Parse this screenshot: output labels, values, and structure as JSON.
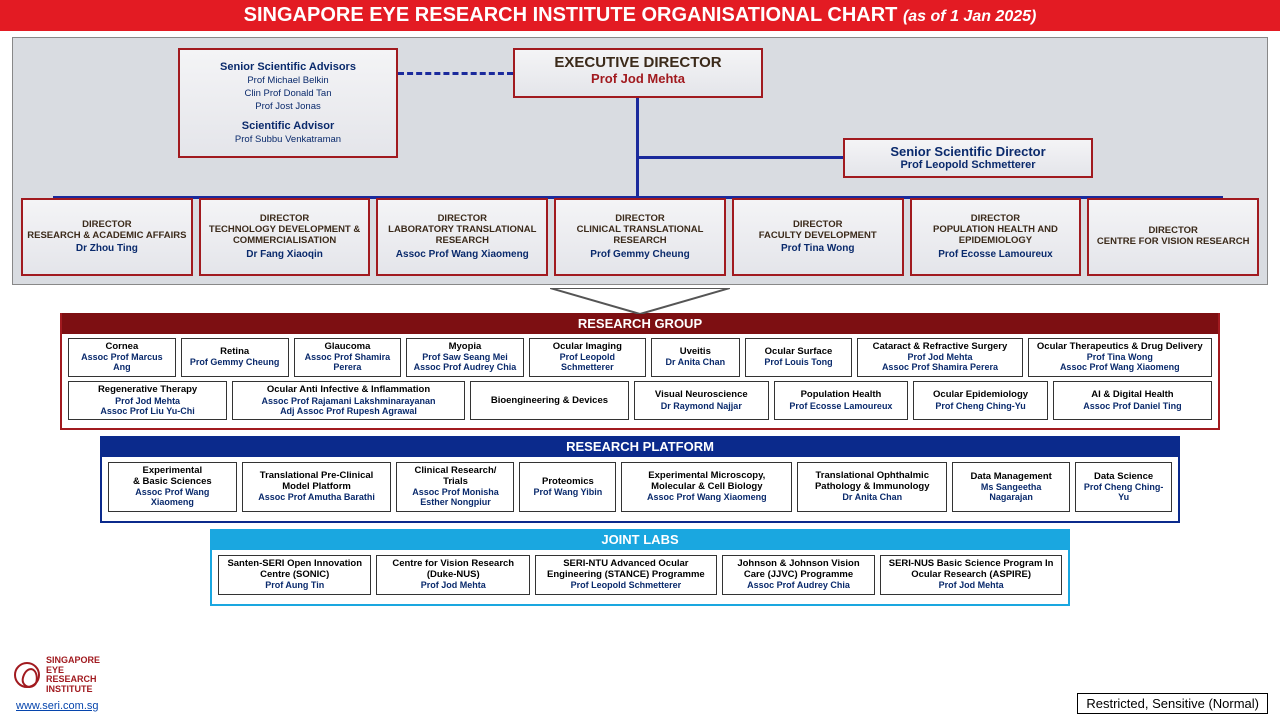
{
  "colors": {
    "title_bg": "#e31b23",
    "panel_bg": "#d9dce1",
    "box_border": "#a11a1f",
    "connector": "#1a2a9c",
    "rg_bar": "#7d0f12",
    "rp_bar": "#0b2a8c",
    "jl_bar": "#1aa7e0",
    "name_blue": "#0a2a6c"
  },
  "title": {
    "main": "SINGAPORE EYE RESEARCH INSTITUTE ORGANISATIONAL CHART",
    "sub": "(as of 1 Jan 2025)"
  },
  "advisors": {
    "header1": "Senior Scientific Advisors",
    "list1": [
      "Prof Michael Belkin",
      "Clin Prof Donald Tan",
      "Prof Jost Jonas"
    ],
    "header2": "Scientific Advisor",
    "list2": [
      "Prof Subbu Venkatraman"
    ]
  },
  "executive": {
    "role": "EXECUTIVE DIRECTOR",
    "name": "Prof Jod Mehta"
  },
  "ssd": {
    "role": "Senior Scientific Director",
    "name": "Prof Leopold Schmetterer"
  },
  "directors": [
    {
      "role": "DIRECTOR\nRESEARCH  & ACADEMIC AFFAIRS",
      "name": "Dr Zhou Ting"
    },
    {
      "role": "DIRECTOR\nTECHNOLOGY DEVELOPMENT & COMMERCIALISATION",
      "name": "Dr Fang Xiaoqin"
    },
    {
      "role": "DIRECTOR\nLABORATORY TRANSLATIONAL  RESEARCH",
      "name": "Assoc Prof Wang Xiaomeng"
    },
    {
      "role": "DIRECTOR\nCLINICAL TRANSLATIONAL RESEARCH",
      "name": "Prof Gemmy Cheung"
    },
    {
      "role": "DIRECTOR\nFACULTY DEVELOPMENT",
      "name": "Prof Tina Wong"
    },
    {
      "role": "DIRECTOR\nPOPULATION HEALTH AND EPIDEMIOLOGY",
      "name": "Prof Ecosse Lamoureux"
    },
    {
      "role": "DIRECTOR\nCENTRE FOR VISION RESEARCH",
      "name": ""
    }
  ],
  "research_group": {
    "title": "RESEARCH GROUP",
    "row1": [
      {
        "t": "Cornea",
        "p": "Assoc Prof Marcus Ang"
      },
      {
        "t": "Retina",
        "p": "Prof Gemmy Cheung"
      },
      {
        "t": "Glaucoma",
        "p": "Assoc Prof Shamira Perera"
      },
      {
        "t": "Myopia",
        "p": "Prof Saw  Seang Mei\nAssoc Prof Audrey Chia"
      },
      {
        "t": "Ocular Imaging",
        "p": "Prof Leopold Schmetterer"
      },
      {
        "t": "Uveitis",
        "p": "Dr Anita Chan"
      },
      {
        "t": "Ocular Surface",
        "p": "Prof Louis Tong"
      },
      {
        "t": "Cataract & Refractive Surgery",
        "p": "Prof Jod Mehta\nAssoc Prof Shamira  Perera"
      },
      {
        "t": "Ocular Therapeutics & Drug Delivery",
        "p": "Prof Tina  Wong\nAssoc Prof Wang Xiaomeng"
      }
    ],
    "row2": [
      {
        "t": "Regenerative Therapy",
        "p": "Prof Jod Mehta\nAssoc Prof Liu Yu-Chi"
      },
      {
        "t": "Ocular Anti Infective & Inflammation",
        "p": "Assoc Prof Rajamani  Lakshminarayanan\nAdj Assoc Prof Rupesh Agrawal"
      },
      {
        "t": "Bioengineering & Devices",
        "p": ""
      },
      {
        "t": "Visual Neuroscience",
        "p": "Dr Raymond Najjar"
      },
      {
        "t": "Population Health",
        "p": "Prof Ecosse Lamoureux"
      },
      {
        "t": "Ocular Epidemiology",
        "p": "Prof Cheng Ching-Yu"
      },
      {
        "t": "AI & Digital Health",
        "p": "Assoc Prof Daniel Ting"
      }
    ]
  },
  "research_platform": {
    "title": "RESEARCH PLATFORM",
    "row": [
      {
        "t": "Experimental\n& Basic Sciences",
        "p": "Assoc Prof Wang Xiaomeng"
      },
      {
        "t": "Translational Pre-Clinical Model Platform",
        "p": "Assoc Prof Amutha Barathi"
      },
      {
        "t": "Clinical Research/\nTrials",
        "p": "Assoc Prof Monisha Esther Nongpiur"
      },
      {
        "t": "Proteomics",
        "p": "Prof Wang Yibin"
      },
      {
        "t": "Experimental  Microscopy, Molecular & Cell Biology",
        "p": "Assoc Prof Wang Xiaomeng"
      },
      {
        "t": "Translational Ophthalmic Pathology & Immunology",
        "p": "Dr Anita Chan"
      },
      {
        "t": "Data Management",
        "p": "Ms Sangeetha Nagarajan"
      },
      {
        "t": "Data Science",
        "p": "Prof Cheng Ching-Yu"
      }
    ]
  },
  "joint_labs": {
    "title": "JOINT LABS",
    "row": [
      {
        "t": "Santen-SERI Open Innovation Centre (SONIC)",
        "p": "Prof Aung Tin"
      },
      {
        "t": "Centre for Vision Research (Duke-NUS)",
        "p": "Prof Jod Mehta"
      },
      {
        "t": "SERI-NTU Advanced Ocular Engineering (STANCE) Programme",
        "p": "Prof Leopold Schmetterer"
      },
      {
        "t": "Johnson & Johnson Vision Care (JJVC) Programme",
        "p": "Assoc Prof Audrey Chia"
      },
      {
        "t": "SERI-NUS Basic Science Program In Ocular Research (ASPIRE)",
        "p": "Prof Jod Mehta"
      }
    ]
  },
  "footer": {
    "logo_text": "SINGAPORE\nEYE\nRESEARCH\nINSTITUTE",
    "link": "www.seri.com.sg",
    "classification": "Restricted, Sensitive (Normal)"
  }
}
